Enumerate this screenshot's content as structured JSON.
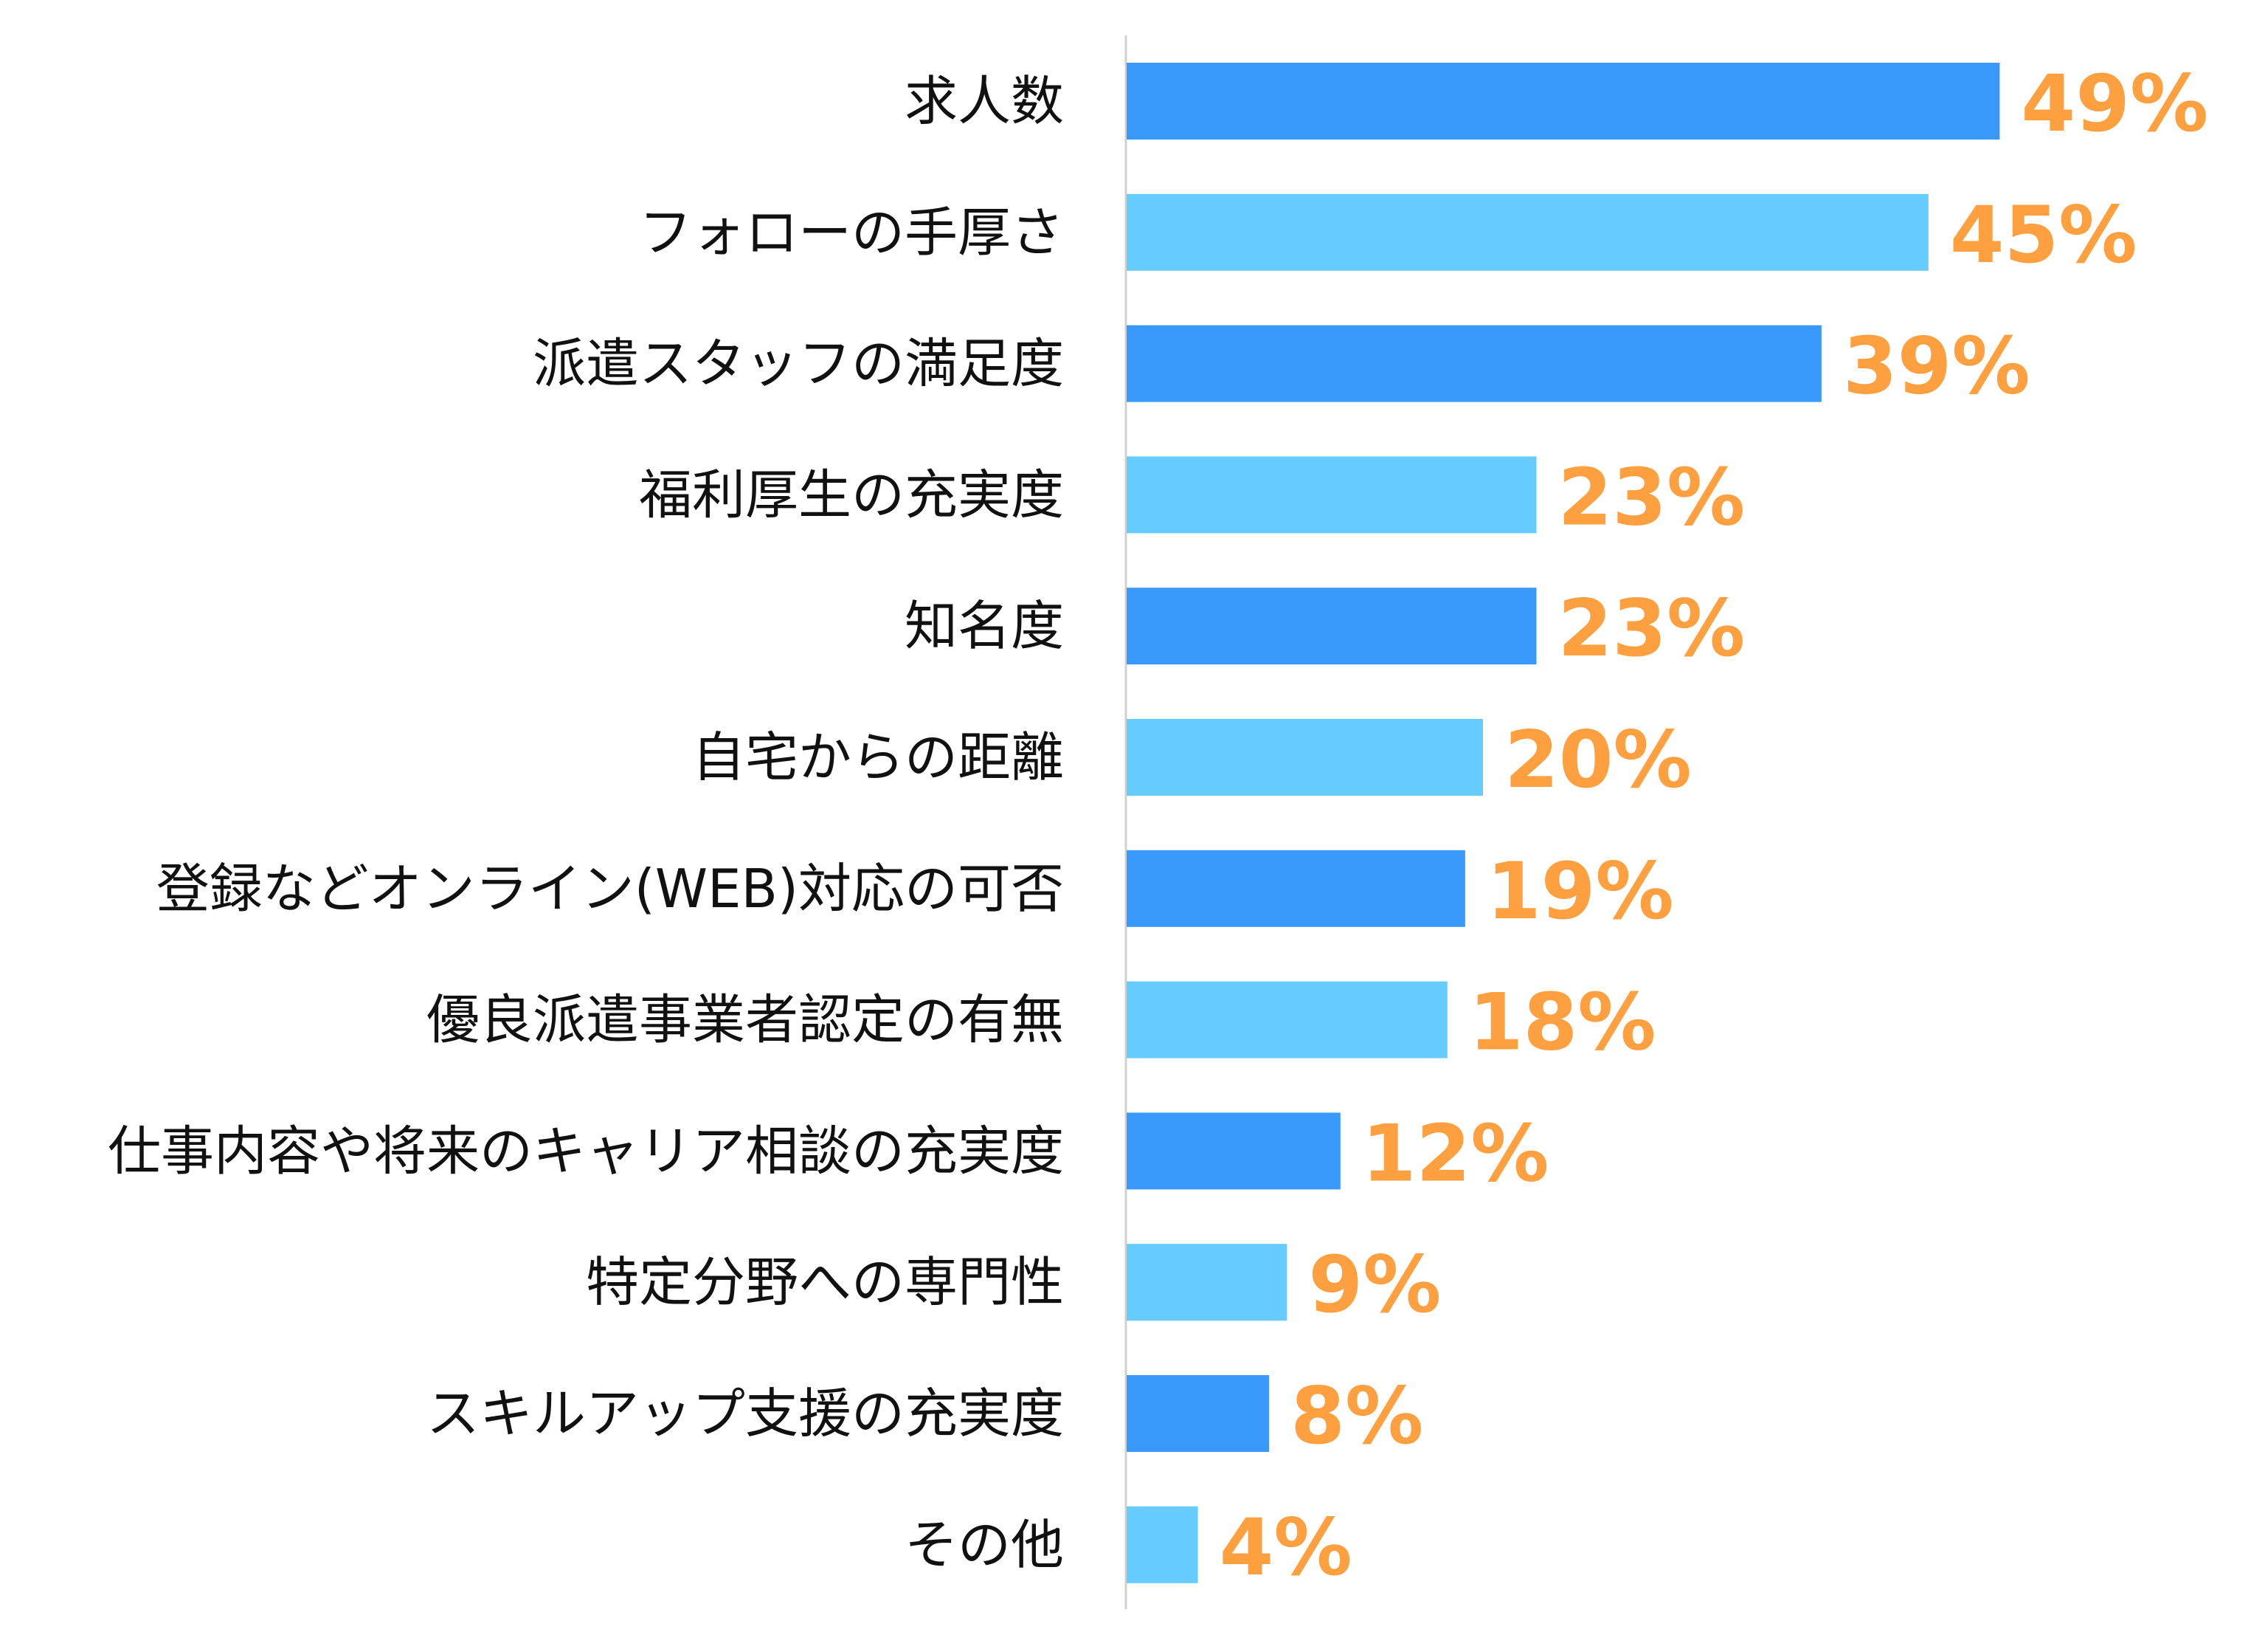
{
  "chart_data": {
    "type": "bar",
    "orientation": "horizontal",
    "categories": [
      "求人数",
      "フォローの手厚さ",
      "派遣スタッフの満足度",
      "福利厚生の充実度",
      "知名度",
      "自宅からの距離",
      "登録などオンライン(WEB)対応の可否",
      "優良派遣事業者認定の有無",
      "仕事内容や将来のキャリア相談の充実度",
      "特定分野への専門性",
      "スキルアップ支援の充実度",
      "その他"
    ],
    "values": [
      49,
      45,
      39,
      23,
      23,
      20,
      19,
      18,
      12,
      9,
      8,
      4
    ],
    "labels": [
      "49%",
      "45%",
      "39%",
      "23%",
      "23%",
      "20%",
      "19%",
      "18%",
      "12%",
      "9%",
      "8%",
      "4%"
    ],
    "unit": "%",
    "xlim": [
      0,
      60
    ],
    "grid": false,
    "legend": "none",
    "colors": {
      "bar_alternate_1": "#3899FA",
      "bar_alternate_2": "#66CBFE",
      "value_label": "#FFA040",
      "axis": "#D0D0D0"
    }
  }
}
